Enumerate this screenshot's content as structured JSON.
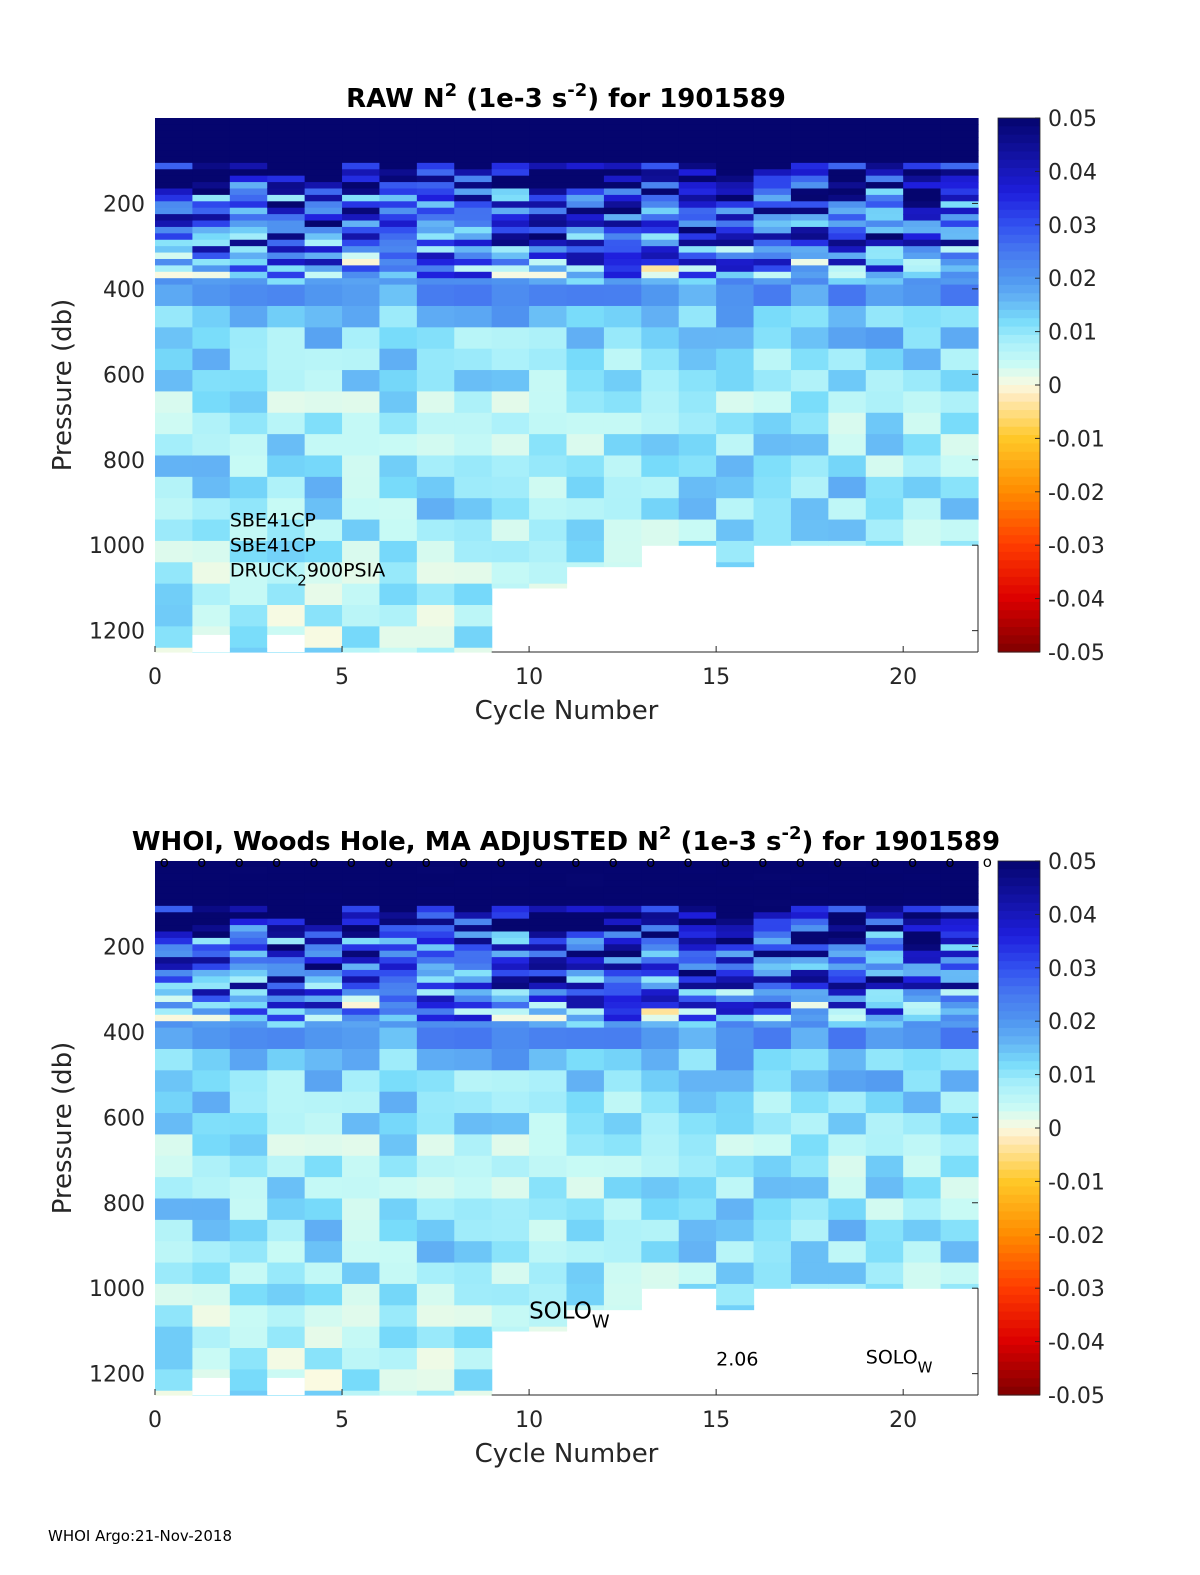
{
  "chart_data": [
    {
      "type": "heatmap",
      "title_main": "RAW N",
      "title_sup1": "2",
      "title_mid": " (1e-3 s",
      "title_sup2": "-2",
      "title_end": ") for 1901589",
      "xlabel": "Cycle Number",
      "ylabel": "Pressure (db)",
      "xlim": [
        0,
        22
      ],
      "ylim": [
        0,
        1250
      ],
      "xticks": [
        "0",
        "5",
        "10",
        "15",
        "20"
      ],
      "yticks": [
        "200",
        "400",
        "600",
        "800",
        "1000",
        "1200"
      ],
      "colorbar_ticks": [
        "0.05",
        "0.04",
        "0.03",
        "0.02",
        "0.01",
        "0",
        "-0.01",
        "-0.02",
        "-0.03",
        "-0.04",
        "-0.05"
      ],
      "clim": [
        -0.05,
        0.05
      ],
      "cycles": 22,
      "depth_profile": [
        {
          "p": 0,
          "v": 0.05
        },
        {
          "p": 130,
          "v": 0.048
        },
        {
          "p": 180,
          "v": 0.03
        },
        {
          "p": 240,
          "v": 0.034
        },
        {
          "p": 300,
          "v": 0.028
        },
        {
          "p": 360,
          "v": 0.016
        },
        {
          "p": 420,
          "v": 0.019
        },
        {
          "p": 500,
          "v": 0.013
        },
        {
          "p": 600,
          "v": 0.01
        },
        {
          "p": 700,
          "v": 0.008
        },
        {
          "p": 800,
          "v": 0.009
        },
        {
          "p": 900,
          "v": 0.011
        },
        {
          "p": 1000,
          "v": 0.008
        },
        {
          "p": 1250,
          "v": 0.007
        }
      ],
      "max_pressure_by_cycle": [
        1250,
        1250,
        1250,
        1250,
        1250,
        1250,
        1250,
        1250,
        1250,
        1100,
        1100,
        1050,
        1050,
        1000,
        1000,
        1050,
        1000,
        1000,
        1000,
        1000,
        1000,
        1000
      ],
      "annotations": [
        {
          "text": "SBE41CP",
          "x": 2,
          "p": 940
        },
        {
          "text": "SBE41CP",
          "x": 2,
          "p": 998
        },
        {
          "text": "DRUCK",
          "sub": "2",
          "tail": "900PSIA",
          "x": 2,
          "p": 1057
        }
      ]
    },
    {
      "type": "heatmap",
      "title_main": "WHOI, Woods Hole, MA  ADJUSTED N",
      "title_sup1": "2",
      "title_mid": " (1e-3 s",
      "title_sup2": "-2",
      "title_end": ") for 1901589",
      "xlabel": "Cycle Number",
      "ylabel": "Pressure (db)",
      "xlim": [
        0,
        22
      ],
      "ylim": [
        0,
        1250
      ],
      "xticks": [
        "0",
        "5",
        "10",
        "15",
        "20"
      ],
      "yticks": [
        "200",
        "400",
        "600",
        "800",
        "1000",
        "1200"
      ],
      "colorbar_ticks": [
        "0.05",
        "0.04",
        "0.03",
        "0.02",
        "0.01",
        "0",
        "-0.01",
        "-0.02",
        "-0.03",
        "-0.04",
        "-0.05"
      ],
      "clim": [
        -0.05,
        0.05
      ],
      "cycles": 22,
      "top_markers": "o",
      "annotations": [
        {
          "text": "SOLO",
          "sub": "W",
          "x": 10,
          "p": 1055,
          "size": "big"
        },
        {
          "text": "2.06",
          "x": 15,
          "p": 1165
        },
        {
          "text": "SOLO",
          "sub": "W",
          "x": 19,
          "p": 1160
        }
      ]
    }
  ],
  "footer": "WHOI Argo:21-Nov-2018"
}
